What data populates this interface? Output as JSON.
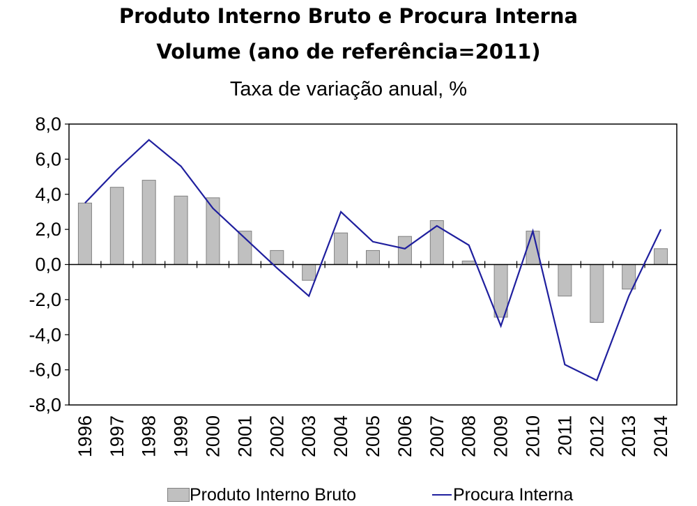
{
  "chart_data": {
    "type": "bar",
    "title": "Produto Interno Bruto e Procura Interna",
    "subtitle": "Volume (ano de referência=2011)",
    "unit_caption": "Taxa de variação anual, %",
    "categories": [
      "1996",
      "1997",
      "1998",
      "1999",
      "2000",
      "2001",
      "2002",
      "2003",
      "2004",
      "2005",
      "2006",
      "2007",
      "2008",
      "2009",
      "2010",
      "2011",
      "2012",
      "2013",
      "2014"
    ],
    "series": [
      {
        "name": "Produto Interno Bruto",
        "type": "bar",
        "values": [
          3.5,
          4.4,
          4.8,
          3.9,
          3.8,
          1.9,
          0.8,
          -0.9,
          1.8,
          0.8,
          1.6,
          2.5,
          0.2,
          -3.0,
          1.9,
          -1.8,
          -3.3,
          -1.4,
          0.9
        ]
      },
      {
        "name": "Procura Interna",
        "type": "line",
        "values": [
          3.5,
          5.4,
          7.1,
          5.6,
          3.2,
          1.5,
          -0.2,
          -1.8,
          3.0,
          1.3,
          0.9,
          2.2,
          1.1,
          -3.5,
          1.9,
          -5.7,
          -6.6,
          -1.8,
          2.0
        ]
      }
    ],
    "ylim": [
      -8.0,
      8.0
    ],
    "yticks": [
      "8,0",
      "6,0",
      "4,0",
      "2,0",
      "0,0",
      "-2,0",
      "-4,0",
      "-6,0",
      "-8,0"
    ],
    "ytick_values": [
      8,
      6,
      4,
      2,
      0,
      -2,
      -4,
      -6,
      -8
    ],
    "grid": false,
    "legend_position": "bottom",
    "colors": {
      "bar_fill": "#c0c0c0",
      "bar_stroke": "#808080",
      "line": "#1f1f9e",
      "axis": "#000000"
    }
  }
}
